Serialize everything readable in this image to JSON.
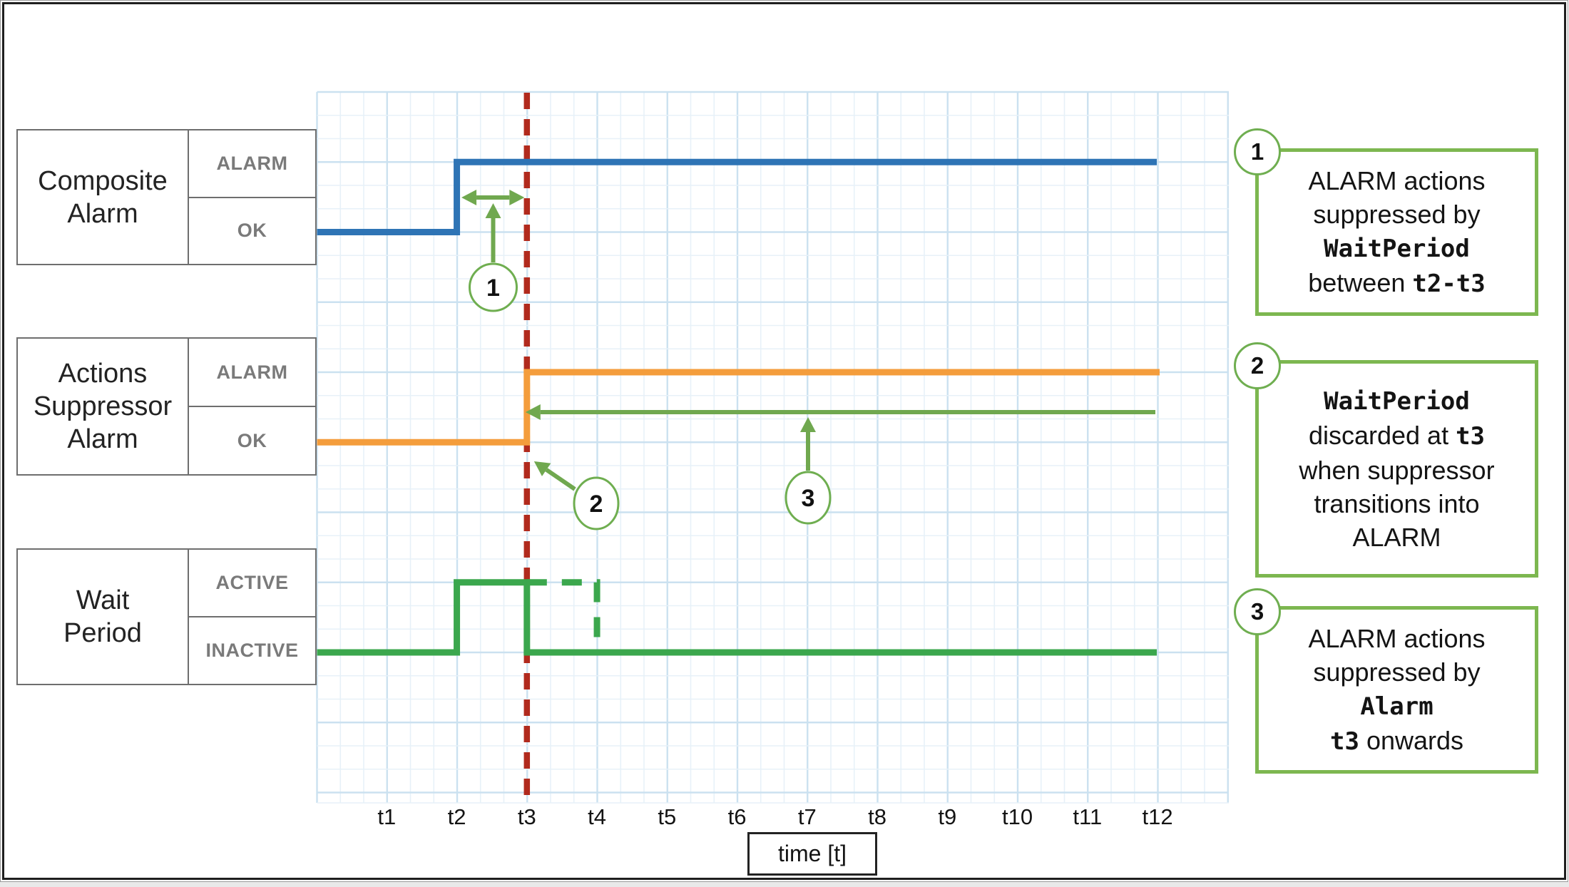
{
  "chart": {
    "x_ticks": [
      "t1",
      "t2",
      "t3",
      "t4",
      "t5",
      "t6",
      "t7",
      "t8",
      "t9",
      "t10",
      "t11",
      "t12"
    ],
    "x_axis_label": "time [t]",
    "marker_line": {
      "at_tick": "t3",
      "color": "#b12a1d",
      "style": "dashed"
    },
    "grid": {
      "minor_color": "#e7f1f8",
      "major_color": "#cbe1f0"
    },
    "rows": [
      {
        "title": "Composite\nAlarm",
        "states": [
          "ALARM",
          "OK"
        ],
        "series_color": "#2e74b5",
        "low_state": "OK",
        "high_state": "ALARM",
        "rise_tick": "t2"
      },
      {
        "title": "Actions\nSuppressor\nAlarm",
        "states": [
          "ALARM",
          "OK"
        ],
        "series_color": "#f49d3c",
        "low_state": "OK",
        "high_state": "ALARM",
        "rise_tick": "t3"
      },
      {
        "title": "Wait\nPeriod",
        "states": [
          "ACTIVE",
          "INACTIVE"
        ],
        "series_color": "#3ba74d",
        "low_state": "INACTIVE",
        "high_state": "ACTIVE",
        "rise_tick": "t2",
        "fall_tick": "t3",
        "discarded_dashed_to_tick": "t4"
      }
    ]
  },
  "annotations": {
    "color": "#70a84f",
    "items": [
      {
        "number": "1"
      },
      {
        "number": "2"
      },
      {
        "number": "3"
      }
    ]
  },
  "callouts": {
    "border_color": "#7db750",
    "items": [
      {
        "number": "1",
        "lines": [
          [
            {
              "text": "ALARM actions"
            }
          ],
          [
            {
              "text": "suppressed by"
            }
          ],
          [
            {
              "text": "WaitPeriod",
              "mono": true
            }
          ],
          [
            {
              "text": "between "
            },
            {
              "text": "t2-t3",
              "mono": true
            }
          ]
        ]
      },
      {
        "number": "2",
        "lines": [
          [
            {
              "text": "WaitPeriod",
              "mono": true
            }
          ],
          [
            {
              "text": "discarded at "
            },
            {
              "text": "t3",
              "mono": true
            }
          ],
          [
            {
              "text": "when suppressor"
            }
          ],
          [
            {
              "text": "transitions into"
            }
          ],
          [
            {
              "text": "ALARM"
            }
          ]
        ]
      },
      {
        "number": "3",
        "lines": [
          [
            {
              "text": "ALARM actions"
            }
          ],
          [
            {
              "text": "suppressed by"
            }
          ],
          [
            {
              "text": "Alarm",
              "mono": true
            }
          ],
          [
            {
              "text": "t3",
              "mono": true
            },
            {
              "text": " onwards"
            }
          ]
        ]
      }
    ]
  }
}
